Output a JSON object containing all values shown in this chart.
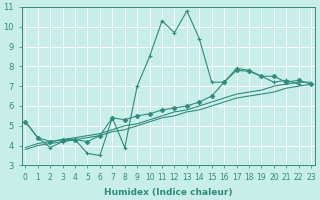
{
  "x": [
    0,
    1,
    2,
    3,
    4,
    5,
    6,
    7,
    8,
    9,
    10,
    11,
    12,
    13,
    14,
    15,
    16,
    17,
    18,
    19,
    20,
    21,
    22,
    23
  ],
  "line_main": [
    5.2,
    4.4,
    3.9,
    4.2,
    4.3,
    3.6,
    3.5,
    5.4,
    3.9,
    7.0,
    8.5,
    10.3,
    9.7,
    10.8,
    9.4,
    7.2,
    7.2,
    7.9,
    7.8,
    7.5,
    7.2,
    7.3,
    7.1,
    null
  ],
  "line_reg1": [
    3.8,
    4.0,
    4.1,
    4.2,
    4.3,
    4.4,
    4.5,
    4.7,
    4.8,
    5.0,
    5.2,
    5.4,
    5.5,
    5.7,
    5.8,
    6.0,
    6.2,
    6.4,
    6.5,
    6.6,
    6.7,
    6.9,
    7.0,
    7.1
  ],
  "line_reg2": [
    3.9,
    4.1,
    4.2,
    4.3,
    4.4,
    4.5,
    4.6,
    4.8,
    5.0,
    5.1,
    5.3,
    5.5,
    5.7,
    5.8,
    6.0,
    6.2,
    6.4,
    6.6,
    6.7,
    6.8,
    7.0,
    7.1,
    7.2,
    7.2
  ],
  "line_marked": [
    5.2,
    4.4,
    4.2,
    4.3,
    4.3,
    4.2,
    4.5,
    5.4,
    5.3,
    5.5,
    5.6,
    5.8,
    5.9,
    6.0,
    6.2,
    6.5,
    7.2,
    7.8,
    7.75,
    7.5,
    7.5,
    7.2,
    7.3,
    7.1
  ],
  "line_color": "#2e8b7a",
  "bg_color": "#c8eeea",
  "grid_color": "#b0d8d2",
  "xlabel": "Humidex (Indice chaleur)",
  "ylim": [
    3,
    11
  ],
  "xlim": [
    0,
    23
  ],
  "yticks": [
    3,
    4,
    5,
    6,
    7,
    8,
    9,
    10,
    11
  ],
  "xticks": [
    0,
    1,
    2,
    3,
    4,
    5,
    6,
    7,
    8,
    9,
    10,
    11,
    12,
    13,
    14,
    15,
    16,
    17,
    18,
    19,
    20,
    21,
    22,
    23
  ],
  "xlabel_fontsize": 6.5,
  "tick_fontsize": 5.5,
  "ytick_fontsize": 6.0,
  "linewidth": 0.8
}
